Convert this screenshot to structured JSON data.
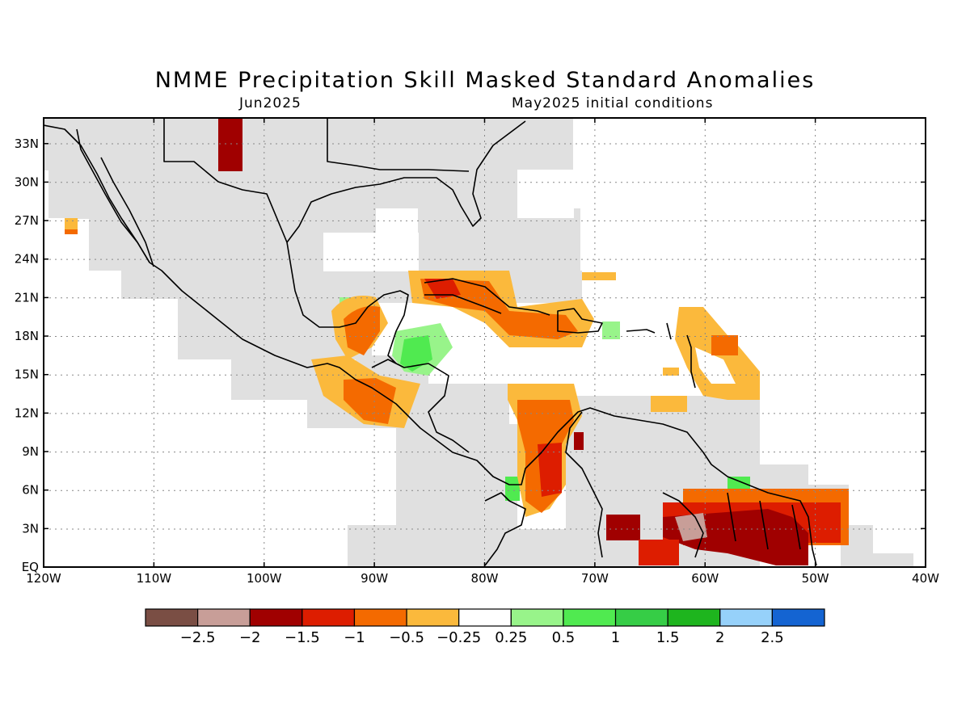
{
  "title": "NMME Precipitation Skill Masked Standard Anomalies",
  "subtitle_left": "Jun2025",
  "subtitle_right": "May2025 initial conditions",
  "map": {
    "lon_labels": [
      "120W",
      "110W",
      "100W",
      "90W",
      "80W",
      "70W",
      "60W",
      "50W",
      "40W"
    ],
    "lat_labels": [
      "33N",
      "30N",
      "27N",
      "24N",
      "21N",
      "18N",
      "15N",
      "12N",
      "9N",
      "6N",
      "3N",
      "EQ"
    ],
    "lon_range": [
      -120,
      -40
    ],
    "lat_range": [
      0,
      35
    ],
    "grid": "dotted",
    "masked_color": "#e0e0e0",
    "land_outline_color": "#000000"
  },
  "colorbar": {
    "labels": [
      "−2.5",
      "−2",
      "−1.5",
      "−1",
      "−0.5",
      "−0.25",
      "0.25",
      "0.5",
      "1",
      "1.5",
      "2",
      "2.5"
    ],
    "colors": [
      "#7a4e44",
      "#c89e98",
      "#a00000",
      "#dd1d00",
      "#f46a00",
      "#fbb93c",
      "#ffffff",
      "#98f48a",
      "#50ea50",
      "#36cd46",
      "#1eb51e",
      "#96d1fa",
      "#1464d2"
    ]
  }
}
